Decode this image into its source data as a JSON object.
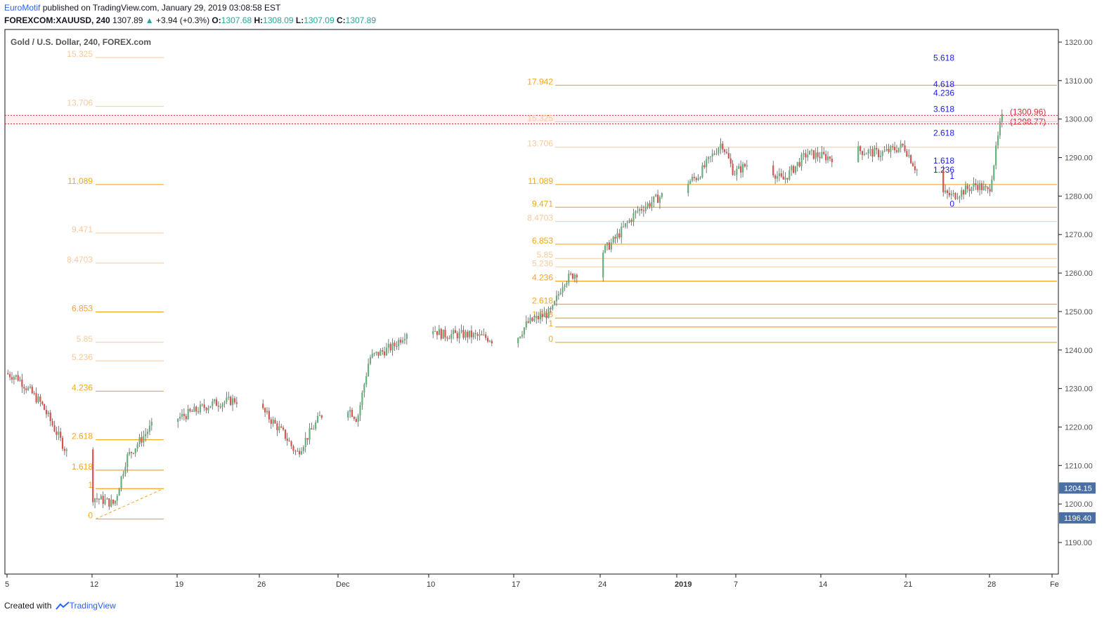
{
  "header": {
    "brand": "EuroMotif",
    "published": " published on TradingView.com, January 29, 2019 03:08:58 EST",
    "symbol": "FOREXCOM:XAUUSD, 240",
    "last": "1307.89",
    "arrow": "▲",
    "change": "+3.94 (+0.3%)",
    "o_label": "O:",
    "o": "1307.68",
    "h_label": "H:",
    "h": "1308.09",
    "l_label": "L:",
    "l": "1307.09",
    "c_label": "C:",
    "c": "1307.89"
  },
  "footer": {
    "created_with": "Created with",
    "tradingview": "TradingView"
  },
  "chart_data": {
    "type": "candlestick",
    "title": "Gold / U.S. Dollar, 240, FOREX.com",
    "colors": {
      "up": "#6aaf7e",
      "down": "#d9534f",
      "fib_strong": "#f5a623",
      "fib_light": "#f8c99a",
      "blue": "#1a1ae6",
      "red": "#cc3333",
      "price_tag": "#4a6fa5"
    },
    "y_axis": {
      "ticks": [
        "1320.00",
        "1310.00",
        "1300.00",
        "1290.00",
        "1280.00",
        "1270.00",
        "1260.00",
        "1250.00",
        "1240.00",
        "1230.00",
        "1220.00",
        "1210.00",
        "1200.00",
        "1190.00"
      ],
      "range": [
        1184,
        1322
      ]
    },
    "x_axis": {
      "ticks": [
        "5",
        "12",
        "19",
        "26",
        "Dec",
        "10",
        "17",
        "24",
        "2019",
        "7",
        "14",
        "21",
        "28",
        "Fe"
      ]
    },
    "price_tags": [
      {
        "value": "1204.15",
        "price": 1204.15
      },
      {
        "value": "1196.40",
        "price": 1196.4
      }
    ],
    "zone": {
      "top": 1300.96,
      "bottom": 1298.77,
      "top_label": "(1300.96)",
      "bottom_label": "(1298.77)"
    },
    "fib_left": [
      {
        "label": "15.325",
        "price": 1316.0,
        "style": "light"
      },
      {
        "label": "13.706",
        "price": 1303.3,
        "style": "light"
      },
      {
        "label": "11.089",
        "price": 1283.0,
        "style": "strong"
      },
      {
        "label": "9.471",
        "price": 1270.4,
        "style": "light"
      },
      {
        "label": "8.4703",
        "price": 1262.6,
        "style": "light"
      },
      {
        "label": "6.853",
        "price": 1249.9,
        "style": "strong"
      },
      {
        "label": "5.85",
        "price": 1242.0,
        "style": "light"
      },
      {
        "label": "5.236",
        "price": 1237.2,
        "style": "light"
      },
      {
        "label": "4.236",
        "price": 1229.3,
        "style": "strong"
      },
      {
        "label": "2.618",
        "price": 1216.7,
        "style": "strong"
      },
      {
        "label": "1.618",
        "price": 1208.8,
        "style": "strong"
      },
      {
        "label": "1",
        "price": 1204.0,
        "style": "strong"
      },
      {
        "label": "0",
        "price": 1196.1,
        "style": "strong"
      }
    ],
    "fib_right": [
      {
        "label": "17.942",
        "price": 1308.8,
        "style": "strong"
      },
      {
        "label": "15.325",
        "price": 1299.3,
        "style": "light"
      },
      {
        "label": "13.706",
        "price": 1292.7,
        "style": "light"
      },
      {
        "label": "11.089",
        "price": 1283.0,
        "style": "strong"
      },
      {
        "label": "9.471",
        "price": 1277.1,
        "style": "strong"
      },
      {
        "label": "8.4703",
        "price": 1273.4,
        "style": "light"
      },
      {
        "label": "6.853",
        "price": 1267.5,
        "style": "strong"
      },
      {
        "label": "5.85",
        "price": 1263.8,
        "style": "light"
      },
      {
        "label": "5.236",
        "price": 1261.6,
        "style": "light"
      },
      {
        "label": "4.236",
        "price": 1257.9,
        "style": "strong"
      },
      {
        "label": "2.618",
        "price": 1251.9,
        "style": "strong"
      },
      {
        "label": "1.618",
        "price": 1248.3,
        "style": "strong"
      },
      {
        "label": "1",
        "price": 1246.0,
        "style": "strong"
      },
      {
        "label": "0",
        "price": 1242.0,
        "style": "strong"
      }
    ],
    "fib_blue": [
      {
        "label": "5.618",
        "price": 1315.9
      },
      {
        "label": "4.618",
        "price": 1309.1
      },
      {
        "label": "4.236",
        "price": 1306.8
      },
      {
        "label": "3.618",
        "price": 1302.6
      },
      {
        "label": "2.618",
        "price": 1296.4
      },
      {
        "label": "1.618",
        "price": 1289.2
      },
      {
        "label": "1.236",
        "price": 1286.8
      },
      {
        "label": "1",
        "price": 1285.2
      },
      {
        "label": "0",
        "price": 1278.0
      }
    ],
    "trend": [
      {
        "date": "2018-11-04",
        "price": 1235.0
      },
      {
        "date": "2018-11-06",
        "price": 1233.0
      },
      {
        "date": "2018-11-08",
        "price": 1226.0
      },
      {
        "date": "2018-11-10",
        "price": 1214.0
      },
      {
        "date": "2018-11-12",
        "price": 1202.0
      },
      {
        "date": "2018-11-14",
        "price": 1200.0
      },
      {
        "date": "2018-11-15",
        "price": 1212.0
      },
      {
        "date": "2018-11-17",
        "price": 1220.0
      },
      {
        "date": "2018-11-19",
        "price": 1222.0
      },
      {
        "date": "2018-11-22",
        "price": 1226.0
      },
      {
        "date": "2018-11-24",
        "price": 1227.0
      },
      {
        "date": "2018-11-26",
        "price": 1225.0
      },
      {
        "date": "2018-11-28",
        "price": 1218.0
      },
      {
        "date": "2018-11-29",
        "price": 1213.0
      },
      {
        "date": "2018-12-01",
        "price": 1223.0
      },
      {
        "date": "2018-12-03",
        "price": 1226.0
      },
      {
        "date": "2018-12-04",
        "price": 1222.0
      },
      {
        "date": "2018-12-05",
        "price": 1238.0
      },
      {
        "date": "2018-12-07",
        "price": 1241.0
      },
      {
        "date": "2018-12-09",
        "price": 1248.0
      },
      {
        "date": "2018-12-11",
        "price": 1244.0
      },
      {
        "date": "2018-12-13",
        "price": 1244.0
      },
      {
        "date": "2018-12-15",
        "price": 1243.0
      },
      {
        "date": "2018-12-16",
        "price": 1238.0
      },
      {
        "date": "2018-12-18",
        "price": 1247.0
      },
      {
        "date": "2018-12-20",
        "price": 1250.0
      },
      {
        "date": "2018-12-21",
        "price": 1258.0
      },
      {
        "date": "2018-12-23",
        "price": 1262.0
      },
      {
        "date": "2018-12-25",
        "price": 1268.0
      },
      {
        "date": "2018-12-27",
        "price": 1276.0
      },
      {
        "date": "2018-12-29",
        "price": 1280.0
      },
      {
        "date": "2019-01-01",
        "price": 1285.0
      },
      {
        "date": "2019-01-03",
        "price": 1294.0
      },
      {
        "date": "2019-01-04",
        "price": 1286.0
      },
      {
        "date": "2019-01-06",
        "price": 1290.0
      },
      {
        "date": "2019-01-08",
        "price": 1284.0
      },
      {
        "date": "2019-01-10",
        "price": 1291.0
      },
      {
        "date": "2019-01-12",
        "price": 1290.0
      },
      {
        "date": "2019-01-14",
        "price": 1292.0
      },
      {
        "date": "2019-01-16",
        "price": 1291.0
      },
      {
        "date": "2019-01-18",
        "price": 1293.0
      },
      {
        "date": "2019-01-19",
        "price": 1287.0
      },
      {
        "date": "2019-01-21",
        "price": 1281.0
      },
      {
        "date": "2019-01-22",
        "price": 1280.0
      },
      {
        "date": "2019-01-24",
        "price": 1283.0
      },
      {
        "date": "2019-01-25",
        "price": 1281.0
      },
      {
        "date": "2019-01-26",
        "price": 1300.0
      },
      {
        "date": "2019-01-27",
        "price": 1303.0
      },
      {
        "date": "2019-01-28",
        "price": 1301.0
      },
      {
        "date": "2019-01-29",
        "price": 1308.0
      }
    ]
  }
}
